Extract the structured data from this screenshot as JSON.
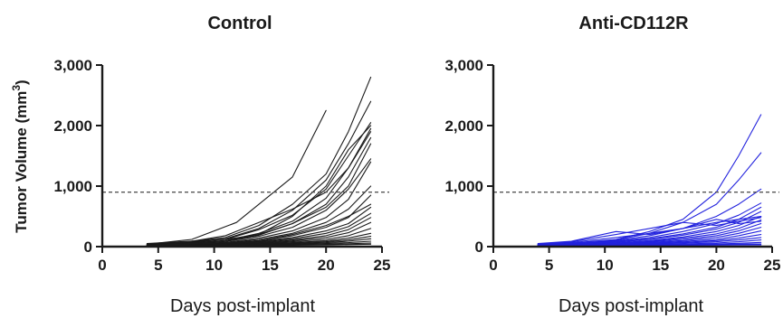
{
  "chart_data": [
    {
      "type": "line",
      "title": "Control",
      "xlabel": "Days post-implant",
      "ylabel": "Tumor Volume (mm",
      "ylabel_sup": "3",
      "ylabel_close": ")",
      "xlim": [
        0,
        25
      ],
      "ylim": [
        0,
        3000
      ],
      "xticks": [
        0,
        5,
        10,
        15,
        20,
        25
      ],
      "yticks": [
        0,
        1000,
        2000,
        3000
      ],
      "xtick_labels": [
        "0",
        "5",
        "10",
        "15",
        "20",
        "25"
      ],
      "ytick_labels": [
        "0",
        "1,000",
        "2,000",
        "3,000"
      ],
      "reference_line_y": 900,
      "grid": false,
      "line_color": "#1a1a1a",
      "x": [
        4,
        7,
        11,
        14,
        17,
        20,
        22,
        24
      ],
      "series": [
        {
          "values": [
            40,
            70,
            150,
            350,
            700,
            1200,
            1900,
            2800
          ]
        },
        {
          "values": [
            35,
            60,
            130,
            300,
            600,
            1100,
            1700,
            2400
          ]
        },
        {
          "values": [
            30,
            55,
            120,
            280,
            520,
            950,
            1500,
            2050
          ]
        },
        {
          "values": [
            30,
            50,
            100,
            220,
            420,
            800,
            1300,
            1950
          ]
        },
        {
          "values": [
            28,
            48,
            95,
            190,
            380,
            700,
            1150,
            1800
          ]
        },
        {
          "values": [
            25,
            45,
            85,
            170,
            320,
            600,
            950,
            1450
          ]
        },
        {
          "values": [
            22,
            40,
            70,
            140,
            260,
            480,
            780,
            1400
          ]
        },
        {
          "values": [
            20,
            35,
            60,
            120,
            220,
            400,
            620,
            1000
          ]
        },
        {
          "values": [
            20,
            32,
            55,
            100,
            180,
            320,
            480,
            850
          ]
        },
        {
          "values": [
            18,
            30,
            50,
            90,
            150,
            260,
            380,
            650
          ]
        },
        {
          "values": [
            18,
            28,
            45,
            80,
            130,
            220,
            330,
            550
          ]
        },
        {
          "values": [
            15,
            25,
            40,
            70,
            110,
            180,
            280,
            480
          ]
        },
        {
          "values": [
            15,
            22,
            35,
            60,
            95,
            150,
            230,
            400
          ]
        },
        {
          "values": [
            12,
            20,
            32,
            50,
            80,
            120,
            180,
            300
          ]
        },
        {
          "values": [
            12,
            18,
            28,
            45,
            65,
            95,
            140,
            220
          ]
        },
        {
          "values": [
            10,
            16,
            25,
            38,
            55,
            80,
            110,
            170
          ]
        },
        {
          "values": [
            10,
            15,
            22,
            32,
            45,
            65,
            90,
            130
          ]
        },
        {
          "values": [
            8,
            12,
            18,
            26,
            36,
            50,
            65,
            90
          ]
        },
        {
          "values": [
            8,
            10,
            15,
            20,
            28,
            38,
            48,
            60
          ]
        },
        {
          "values": [
            6,
            8,
            12,
            16,
            22,
            28,
            35,
            40
          ]
        },
        {
          "values": [
            50,
            80,
            120,
            200,
            380,
            650,
            1000,
            1700
          ]
        },
        {
          "values": [
            30,
            60,
            180,
            400,
            620,
            900,
            1300,
            1900
          ]
        },
        {
          "values": [
            25,
            45,
            90,
            200,
            500,
            1000,
            1600,
            2000
          ]
        },
        {
          "values": [
            20,
            40,
            60,
            100,
            200,
            350,
            500,
            700
          ]
        }
      ],
      "extra_series": [
        {
          "x": [
            4,
            8,
            12,
            17,
            20
          ],
          "values": [
            40,
            120,
            400,
            1150,
            2250
          ]
        }
      ]
    },
    {
      "type": "line",
      "title": "Anti-CD112R",
      "xlabel": "Days post-implant",
      "xlim": [
        0,
        25
      ],
      "ylim": [
        0,
        3000
      ],
      "xticks": [
        0,
        5,
        10,
        15,
        20,
        25
      ],
      "yticks": [
        0,
        1000,
        2000,
        3000
      ],
      "xtick_labels": [
        "0",
        "5",
        "10",
        "15",
        "20",
        "25"
      ],
      "ytick_labels": [
        "0",
        "1,000",
        "2,000",
        "3,000"
      ],
      "reference_line_y": 900,
      "grid": false,
      "line_color": "#2222dd",
      "x": [
        4,
        7,
        11,
        14,
        17,
        20,
        22,
        24
      ],
      "series": [
        {
          "values": [
            40,
            60,
            120,
            250,
            450,
            900,
            1500,
            2180
          ]
        },
        {
          "values": [
            35,
            55,
            110,
            220,
            400,
            700,
            1100,
            1550
          ]
        },
        {
          "values": [
            30,
            50,
            100,
            180,
            300,
            500,
            700,
            950
          ]
        },
        {
          "values": [
            30,
            45,
            90,
            150,
            250,
            380,
            520,
            720
          ]
        },
        {
          "values": [
            28,
            42,
            80,
            130,
            210,
            320,
            450,
            650
          ]
        },
        {
          "values": [
            25,
            40,
            70,
            120,
            190,
            290,
            400,
            580
          ]
        },
        {
          "values": [
            22,
            38,
            60,
            100,
            160,
            250,
            350,
            500
          ]
        },
        {
          "values": [
            20,
            35,
            55,
            90,
            140,
            210,
            300,
            440
          ]
        },
        {
          "values": [
            20,
            32,
            50,
            80,
            120,
            180,
            260,
            380
          ]
        },
        {
          "values": [
            18,
            30,
            45,
            70,
            100,
            150,
            220,
            320
          ]
        },
        {
          "values": [
            18,
            28,
            40,
            60,
            85,
            120,
            180,
            260
          ]
        },
        {
          "values": [
            15,
            25,
            35,
            50,
            70,
            100,
            140,
            200
          ]
        },
        {
          "values": [
            15,
            22,
            30,
            42,
            58,
            80,
            110,
            150
          ]
        },
        {
          "values": [
            12,
            20,
            26,
            35,
            45,
            60,
            80,
            110
          ]
        },
        {
          "values": [
            12,
            18,
            22,
            28,
            36,
            45,
            55,
            70
          ]
        },
        {
          "values": [
            10,
            15,
            20,
            24,
            28,
            34,
            40,
            45
          ]
        },
        {
          "values": [
            8,
            12,
            16,
            20,
            22,
            25,
            28,
            30
          ]
        },
        {
          "values": [
            50,
            90,
            250,
            200,
            300,
            400,
            450,
            500
          ]
        },
        {
          "values": [
            40,
            80,
            200,
            300,
            400,
            350,
            420,
            480
          ]
        },
        {
          "values": [
            30,
            70,
            150,
            220,
            300,
            450,
            380,
            420
          ]
        }
      ],
      "extra_series": []
    }
  ]
}
